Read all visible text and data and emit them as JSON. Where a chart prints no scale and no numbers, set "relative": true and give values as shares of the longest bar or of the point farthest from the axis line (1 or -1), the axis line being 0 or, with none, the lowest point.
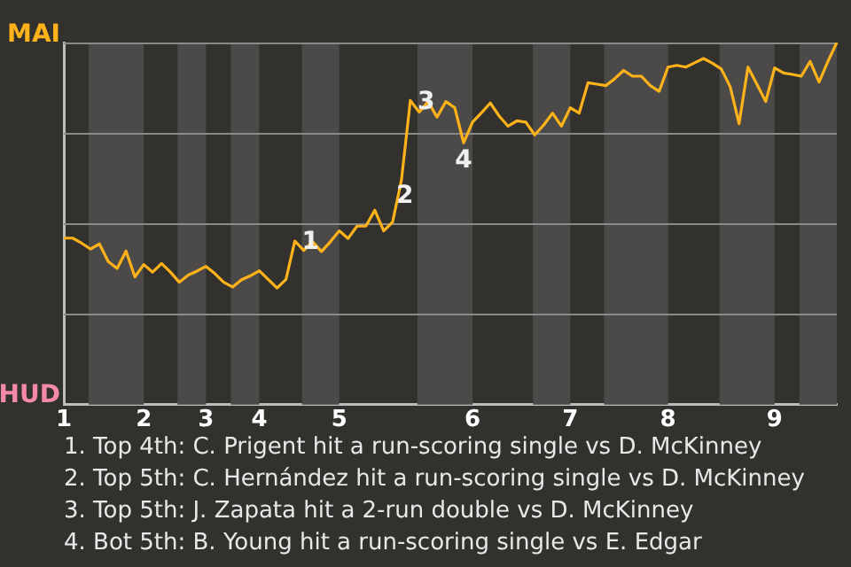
{
  "chart_data": {
    "type": "line",
    "relative": true,
    "categories": [
      "1",
      null,
      null,
      null,
      null,
      null,
      null,
      null,
      null,
      "2",
      null,
      null,
      null,
      null,
      null,
      null,
      "3",
      null,
      null,
      null,
      null,
      null,
      "4",
      null,
      null,
      null,
      null,
      null,
      null,
      null,
      null,
      "5",
      null,
      null,
      null,
      null,
      null,
      null,
      null,
      null,
      null,
      null,
      null,
      null,
      null,
      null,
      "6",
      null,
      null,
      null,
      null,
      null,
      null,
      null,
      null,
      null,
      null,
      "7",
      null,
      null,
      null,
      null,
      null,
      null,
      null,
      null,
      null,
      null,
      "8",
      null,
      null,
      null,
      null,
      null,
      null,
      null,
      null,
      null,
      null,
      null,
      "9",
      null,
      null,
      null,
      null,
      null,
      null,
      null
    ],
    "legend": false,
    "marker": "none",
    "line_style": "solid",
    "series": [
      {
        "color": "#ffb21a",
        "values": [
          0.46,
          0.46,
          0.446,
          0.43,
          0.444,
          0.395,
          0.376,
          0.424,
          0.353,
          0.387,
          0.366,
          0.39,
          0.366,
          0.338,
          0.358,
          0.369,
          0.382,
          0.362,
          0.338,
          0.325,
          0.345,
          0.356,
          0.37,
          0.346,
          0.322,
          0.346,
          0.452,
          0.426,
          0.45,
          0.423,
          0.45,
          0.48,
          0.459,
          0.493,
          0.493,
          0.537,
          0.48,
          0.504,
          0.62,
          0.84,
          0.808,
          0.837,
          0.794,
          0.837,
          0.82,
          0.723,
          0.78,
          0.806,
          0.833,
          0.797,
          0.769,
          0.784,
          0.78,
          0.745,
          0.772,
          0.805,
          0.769,
          0.82,
          0.805,
          0.889,
          0.885,
          0.881,
          0.9,
          0.923,
          0.907,
          0.907,
          0.881,
          0.865,
          0.932,
          0.937,
          0.932,
          0.944,
          0.956,
          0.943,
          0.927,
          0.878,
          0.776,
          0.932,
          0.885,
          0.837,
          0.93,
          0.916,
          0.912,
          0.907,
          0.948,
          0.891,
          0.948,
          1
        ]
      }
    ],
    "annotations": [
      "MAI",
      "HUD",
      {
        "text": "1",
        "y": 0.452
      },
      {
        "text": "2",
        "y": 0.62
      },
      {
        "text": "3",
        "y": 0.84
      },
      {
        "text": "4",
        "y": 0.723
      },
      "1. Top 4th: C. Prigent hit a run-scoring single vs D. McKinney",
      "2. Top 5th: C. Hernández hit a run-scoring single vs D. McKinney",
      "3. Top 5th: J. Zapata hit a 2-run double vs D. McKinney",
      "4. Bot 5th: B. Young hit a run-scoring single vs E. Edgar"
    ]
  }
}
